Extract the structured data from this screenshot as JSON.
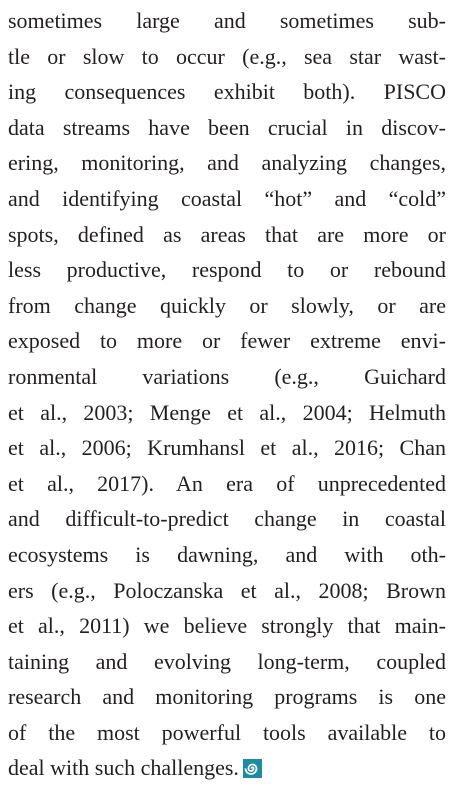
{
  "body": {
    "lines": [
      "sometimes large and sometimes sub-",
      "tle or slow to occur (e.g., sea star wast-",
      "ing consequences exhibit both). PISCO",
      "data streams have been crucial in discov-",
      "ering, monitoring, and analyzing changes,",
      "and identifying coastal “hot” and “cold”",
      "spots, defined as areas that are more or",
      "less productive, respond to or rebound",
      "from change quickly or slowly, or are",
      "exposed to more or fewer extreme envi-",
      "ronmental variations (e.g., Guichard",
      "et al., 2003; Menge et al., 2004; Helmuth",
      "et al., 2006; Krumhansl et al., 2016; Chan",
      "et al., 2017). An era of unprecedented",
      "and difficult-to-predict change in coastal",
      "ecosystems is dawning, and with oth-",
      "ers (e.g., Poloczanska et al., 2008; Brown",
      "et al., 2011) we believe strongly that main-",
      "taining and evolving long-term, coupled",
      "research and monitoring programs is one",
      "of the most powerful tools available to",
      "deal with such challenges."
    ]
  }
}
